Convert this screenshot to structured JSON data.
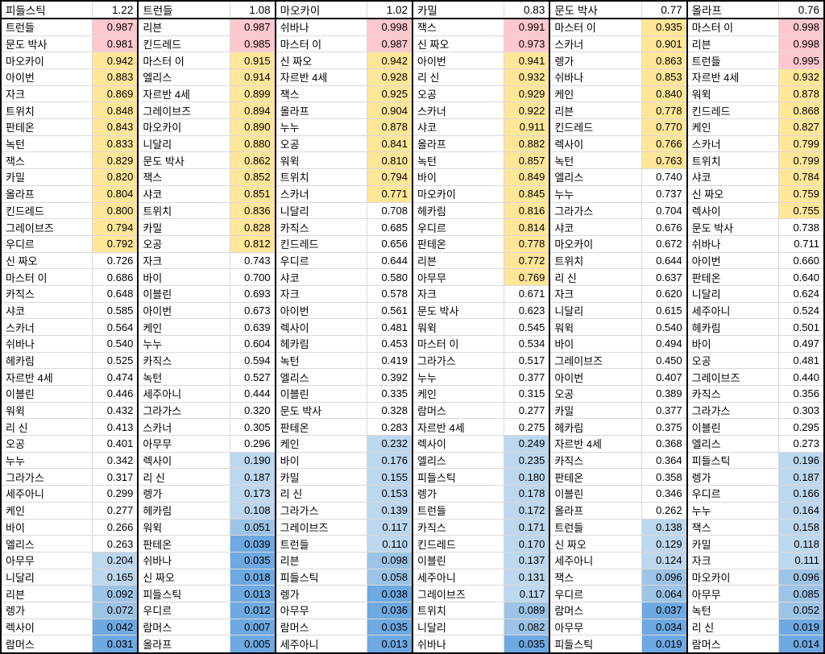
{
  "chart_data": {
    "type": "table",
    "description_columns": [
      "champion",
      "synergy_value"
    ],
    "columns": [
      {
        "champion": "피들스틱",
        "score": "1.22",
        "rows": [
          {
            "name": "트런들",
            "value": "0.987"
          },
          {
            "name": "문도 박사",
            "value": "0.981"
          },
          {
            "name": "마오카이",
            "value": "0.942"
          },
          {
            "name": "아이번",
            "value": "0.883"
          },
          {
            "name": "자크",
            "value": "0.869"
          },
          {
            "name": "트위치",
            "value": "0.848"
          },
          {
            "name": "판테온",
            "value": "0.843"
          },
          {
            "name": "녹턴",
            "value": "0.833"
          },
          {
            "name": "잭스",
            "value": "0.829"
          },
          {
            "name": "카밀",
            "value": "0.820"
          },
          {
            "name": "올라프",
            "value": "0.804"
          },
          {
            "name": "킨드레드",
            "value": "0.800"
          },
          {
            "name": "그레이브즈",
            "value": "0.794"
          },
          {
            "name": "우디르",
            "value": "0.792"
          },
          {
            "name": "신 짜오",
            "value": "0.726"
          },
          {
            "name": "마스터 이",
            "value": "0.686"
          },
          {
            "name": "카직스",
            "value": "0.648"
          },
          {
            "name": "샤코",
            "value": "0.585"
          },
          {
            "name": "스카너",
            "value": "0.564"
          },
          {
            "name": "쉬바나",
            "value": "0.540"
          },
          {
            "name": "헤카림",
            "value": "0.525"
          },
          {
            "name": "자르반 4세",
            "value": "0.474"
          },
          {
            "name": "이블린",
            "value": "0.446"
          },
          {
            "name": "워윅",
            "value": "0.432"
          },
          {
            "name": "리 신",
            "value": "0.413"
          },
          {
            "name": "오공",
            "value": "0.401"
          },
          {
            "name": "누누",
            "value": "0.342"
          },
          {
            "name": "그라가스",
            "value": "0.317"
          },
          {
            "name": "세주아니",
            "value": "0.299"
          },
          {
            "name": "케인",
            "value": "0.277"
          },
          {
            "name": "바이",
            "value": "0.266"
          },
          {
            "name": "엘리스",
            "value": "0.263"
          },
          {
            "name": "아무무",
            "value": "0.204"
          },
          {
            "name": "니달리",
            "value": "0.165"
          },
          {
            "name": "리븐",
            "value": "0.092"
          },
          {
            "name": "렝가",
            "value": "0.072"
          },
          {
            "name": "렉사이",
            "value": "0.042"
          },
          {
            "name": "람머스",
            "value": "0.031"
          }
        ]
      },
      {
        "champion": "트런들",
        "score": "1.08",
        "rows": [
          {
            "name": "리븐",
            "value": "0.987"
          },
          {
            "name": "킨드레드",
            "value": "0.985"
          },
          {
            "name": "마스터 이",
            "value": "0.915"
          },
          {
            "name": "엘리스",
            "value": "0.914"
          },
          {
            "name": "자르반 4세",
            "value": "0.899"
          },
          {
            "name": "그레이브즈",
            "value": "0.894"
          },
          {
            "name": "마오카이",
            "value": "0.890"
          },
          {
            "name": "니달리",
            "value": "0.880"
          },
          {
            "name": "문도 박사",
            "value": "0.862"
          },
          {
            "name": "잭스",
            "value": "0.852"
          },
          {
            "name": "샤코",
            "value": "0.851"
          },
          {
            "name": "트위치",
            "value": "0.836"
          },
          {
            "name": "카밀",
            "value": "0.828"
          },
          {
            "name": "오공",
            "value": "0.812"
          },
          {
            "name": "자크",
            "value": "0.743"
          },
          {
            "name": "바이",
            "value": "0.700"
          },
          {
            "name": "이블린",
            "value": "0.693"
          },
          {
            "name": "아이번",
            "value": "0.673"
          },
          {
            "name": "케인",
            "value": "0.639"
          },
          {
            "name": "누누",
            "value": "0.604"
          },
          {
            "name": "카직스",
            "value": "0.594"
          },
          {
            "name": "녹턴",
            "value": "0.527"
          },
          {
            "name": "세주아니",
            "value": "0.444"
          },
          {
            "name": "그라가스",
            "value": "0.320"
          },
          {
            "name": "스카너",
            "value": "0.305"
          },
          {
            "name": "아무무",
            "value": "0.296"
          },
          {
            "name": "렉사이",
            "value": "0.190"
          },
          {
            "name": "리 신",
            "value": "0.187"
          },
          {
            "name": "렝가",
            "value": "0.173"
          },
          {
            "name": "헤카림",
            "value": "0.108"
          },
          {
            "name": "워윅",
            "value": "0.051"
          },
          {
            "name": "판테온",
            "value": "0.039"
          },
          {
            "name": "쉬바나",
            "value": "0.035"
          },
          {
            "name": "신 짜오",
            "value": "0.018"
          },
          {
            "name": "피들스틱",
            "value": "0.013"
          },
          {
            "name": "우디르",
            "value": "0.012"
          },
          {
            "name": "람머스",
            "value": "0.007"
          },
          {
            "name": "올라프",
            "value": "0.005"
          }
        ]
      },
      {
        "champion": "마오카이",
        "score": "1.02",
        "rows": [
          {
            "name": "쉬바나",
            "value": "0.998"
          },
          {
            "name": "마스터 이",
            "value": "0.987"
          },
          {
            "name": "신 짜오",
            "value": "0.942"
          },
          {
            "name": "자르반 4세",
            "value": "0.928"
          },
          {
            "name": "잭스",
            "value": "0.925"
          },
          {
            "name": "올라프",
            "value": "0.904"
          },
          {
            "name": "누누",
            "value": "0.878"
          },
          {
            "name": "오공",
            "value": "0.841"
          },
          {
            "name": "워윅",
            "value": "0.810"
          },
          {
            "name": "트위치",
            "value": "0.794"
          },
          {
            "name": "스카너",
            "value": "0.771"
          },
          {
            "name": "니달리",
            "value": "0.708"
          },
          {
            "name": "카직스",
            "value": "0.685"
          },
          {
            "name": "킨드레드",
            "value": "0.656"
          },
          {
            "name": "우디르",
            "value": "0.644"
          },
          {
            "name": "샤코",
            "value": "0.580"
          },
          {
            "name": "자크",
            "value": "0.578"
          },
          {
            "name": "아이번",
            "value": "0.561"
          },
          {
            "name": "렉사이",
            "value": "0.481"
          },
          {
            "name": "헤카림",
            "value": "0.453"
          },
          {
            "name": "녹턴",
            "value": "0.419"
          },
          {
            "name": "엘리스",
            "value": "0.392"
          },
          {
            "name": "이블린",
            "value": "0.335"
          },
          {
            "name": "문도 박사",
            "value": "0.328"
          },
          {
            "name": "판테온",
            "value": "0.283"
          },
          {
            "name": "케인",
            "value": "0.232"
          },
          {
            "name": "바이",
            "value": "0.176"
          },
          {
            "name": "카밀",
            "value": "0.155"
          },
          {
            "name": "리 신",
            "value": "0.153"
          },
          {
            "name": "그라가스",
            "value": "0.139"
          },
          {
            "name": "그레이브즈",
            "value": "0.117"
          },
          {
            "name": "트런들",
            "value": "0.110"
          },
          {
            "name": "리븐",
            "value": "0.098"
          },
          {
            "name": "피들스틱",
            "value": "0.058"
          },
          {
            "name": "렝가",
            "value": "0.038"
          },
          {
            "name": "아무무",
            "value": "0.036"
          },
          {
            "name": "람머스",
            "value": "0.035"
          },
          {
            "name": "세주아니",
            "value": "0.013"
          }
        ]
      },
      {
        "champion": "카밀",
        "score": "0.83",
        "rows": [
          {
            "name": "잭스",
            "value": "0.991"
          },
          {
            "name": "신 짜오",
            "value": "0.973"
          },
          {
            "name": "아이번",
            "value": "0.941"
          },
          {
            "name": "리 신",
            "value": "0.932"
          },
          {
            "name": "오공",
            "value": "0.929"
          },
          {
            "name": "스카너",
            "value": "0.922"
          },
          {
            "name": "샤코",
            "value": "0.911"
          },
          {
            "name": "올라프",
            "value": "0.882"
          },
          {
            "name": "녹턴",
            "value": "0.857"
          },
          {
            "name": "바이",
            "value": "0.849"
          },
          {
            "name": "마오카이",
            "value": "0.845"
          },
          {
            "name": "헤카림",
            "value": "0.816"
          },
          {
            "name": "우디르",
            "value": "0.814"
          },
          {
            "name": "판테온",
            "value": "0.778"
          },
          {
            "name": "리븐",
            "value": "0.772"
          },
          {
            "name": "아무무",
            "value": "0.769"
          },
          {
            "name": "자크",
            "value": "0.671"
          },
          {
            "name": "문도 박사",
            "value": "0.623"
          },
          {
            "name": "워윅",
            "value": "0.545"
          },
          {
            "name": "마스터 이",
            "value": "0.534"
          },
          {
            "name": "그라가스",
            "value": "0.517"
          },
          {
            "name": "누누",
            "value": "0.377"
          },
          {
            "name": "케인",
            "value": "0.315"
          },
          {
            "name": "람머스",
            "value": "0.277"
          },
          {
            "name": "자르반 4세",
            "value": "0.275"
          },
          {
            "name": "렉사이",
            "value": "0.249"
          },
          {
            "name": "엘리스",
            "value": "0.235"
          },
          {
            "name": "피들스틱",
            "value": "0.180"
          },
          {
            "name": "렝가",
            "value": "0.178"
          },
          {
            "name": "트런들",
            "value": "0.172"
          },
          {
            "name": "카직스",
            "value": "0.171"
          },
          {
            "name": "킨드레드",
            "value": "0.170"
          },
          {
            "name": "이블린",
            "value": "0.137"
          },
          {
            "name": "세주아니",
            "value": "0.131"
          },
          {
            "name": "그레이브즈",
            "value": "0.117"
          },
          {
            "name": "트위치",
            "value": "0.089"
          },
          {
            "name": "니달리",
            "value": "0.082"
          },
          {
            "name": "쉬바나",
            "value": "0.035"
          }
        ]
      },
      {
        "champion": "문도 박사",
        "score": "0.77",
        "rows": [
          {
            "name": "마스터 이",
            "value": "0.935"
          },
          {
            "name": "스카너",
            "value": "0.901"
          },
          {
            "name": "렝가",
            "value": "0.863"
          },
          {
            "name": "쉬바나",
            "value": "0.853"
          },
          {
            "name": "케인",
            "value": "0.840"
          },
          {
            "name": "리븐",
            "value": "0.778"
          },
          {
            "name": "킨드레드",
            "value": "0.770"
          },
          {
            "name": "렉사이",
            "value": "0.766"
          },
          {
            "name": "녹턴",
            "value": "0.763"
          },
          {
            "name": "엘리스",
            "value": "0.740"
          },
          {
            "name": "누누",
            "value": "0.737"
          },
          {
            "name": "그라가스",
            "value": "0.704"
          },
          {
            "name": "샤코",
            "value": "0.676"
          },
          {
            "name": "마오카이",
            "value": "0.672"
          },
          {
            "name": "트위치",
            "value": "0.644"
          },
          {
            "name": "리 신",
            "value": "0.637"
          },
          {
            "name": "자크",
            "value": "0.620"
          },
          {
            "name": "니달리",
            "value": "0.615"
          },
          {
            "name": "워윅",
            "value": "0.540"
          },
          {
            "name": "바이",
            "value": "0.494"
          },
          {
            "name": "그레이브즈",
            "value": "0.450"
          },
          {
            "name": "아이번",
            "value": "0.407"
          },
          {
            "name": "오공",
            "value": "0.389"
          },
          {
            "name": "카밀",
            "value": "0.377"
          },
          {
            "name": "헤카림",
            "value": "0.375"
          },
          {
            "name": "자르반 4세",
            "value": "0.368"
          },
          {
            "name": "카직스",
            "value": "0.364"
          },
          {
            "name": "판테온",
            "value": "0.358"
          },
          {
            "name": "이블린",
            "value": "0.346"
          },
          {
            "name": "올라프",
            "value": "0.262"
          },
          {
            "name": "트런들",
            "value": "0.138"
          },
          {
            "name": "신 짜오",
            "value": "0.129"
          },
          {
            "name": "세주아니",
            "value": "0.124"
          },
          {
            "name": "잭스",
            "value": "0.096"
          },
          {
            "name": "우디르",
            "value": "0.064"
          },
          {
            "name": "람머스",
            "value": "0.037"
          },
          {
            "name": "아무무",
            "value": "0.034"
          },
          {
            "name": "피들스틱",
            "value": "0.019"
          }
        ]
      },
      {
        "champion": "올라프",
        "score": "0.76",
        "rows": [
          {
            "name": "마스터 이",
            "value": "0.998"
          },
          {
            "name": "리븐",
            "value": "0.998"
          },
          {
            "name": "트런들",
            "value": "0.995"
          },
          {
            "name": "자르반 4세",
            "value": "0.932"
          },
          {
            "name": "워윅",
            "value": "0.878"
          },
          {
            "name": "킨드레드",
            "value": "0.868"
          },
          {
            "name": "케인",
            "value": "0.827"
          },
          {
            "name": "스카너",
            "value": "0.799"
          },
          {
            "name": "트위치",
            "value": "0.799"
          },
          {
            "name": "샤코",
            "value": "0.784"
          },
          {
            "name": "신 짜오",
            "value": "0.759"
          },
          {
            "name": "렉사이",
            "value": "0.755"
          },
          {
            "name": "문도 박사",
            "value": "0.738"
          },
          {
            "name": "쉬바나",
            "value": "0.711"
          },
          {
            "name": "아이번",
            "value": "0.660"
          },
          {
            "name": "판테온",
            "value": "0.640"
          },
          {
            "name": "니달리",
            "value": "0.624"
          },
          {
            "name": "세주아니",
            "value": "0.524"
          },
          {
            "name": "헤카림",
            "value": "0.501"
          },
          {
            "name": "바이",
            "value": "0.497"
          },
          {
            "name": "오공",
            "value": "0.481"
          },
          {
            "name": "그레이브즈",
            "value": "0.440"
          },
          {
            "name": "카직스",
            "value": "0.356"
          },
          {
            "name": "그라가스",
            "value": "0.303"
          },
          {
            "name": "이블린",
            "value": "0.295"
          },
          {
            "name": "엘리스",
            "value": "0.273"
          },
          {
            "name": "피들스틱",
            "value": "0.196"
          },
          {
            "name": "렝가",
            "value": "0.187"
          },
          {
            "name": "우디르",
            "value": "0.166"
          },
          {
            "name": "누누",
            "value": "0.164"
          },
          {
            "name": "잭스",
            "value": "0.158"
          },
          {
            "name": "카밀",
            "value": "0.118"
          },
          {
            "name": "자크",
            "value": "0.111"
          },
          {
            "name": "마오카이",
            "value": "0.096"
          },
          {
            "name": "아무무",
            "value": "0.085"
          },
          {
            "name": "녹턴",
            "value": "0.052"
          },
          {
            "name": "리 신",
            "value": "0.019"
          },
          {
            "name": "람머스",
            "value": "0.014"
          }
        ]
      }
    ]
  },
  "conditional_format": {
    "thresholds": {
      "pink_min": 0.95,
      "yellow_min": 0.75,
      "light_blue_max": 0.25,
      "mid_blue_max": 0.1,
      "deep_blue_max": 0.05
    },
    "colors": {
      "pink": "#ffc7ce",
      "yellow": "#ffe699",
      "light_blue": "#bdd7ee",
      "mid_blue": "#9dc3e6",
      "deep_blue": "#6ea9e2",
      "none": "#ffffff"
    }
  },
  "grid": {
    "line_color": "#d9d9d9",
    "border_color": "#000000"
  }
}
